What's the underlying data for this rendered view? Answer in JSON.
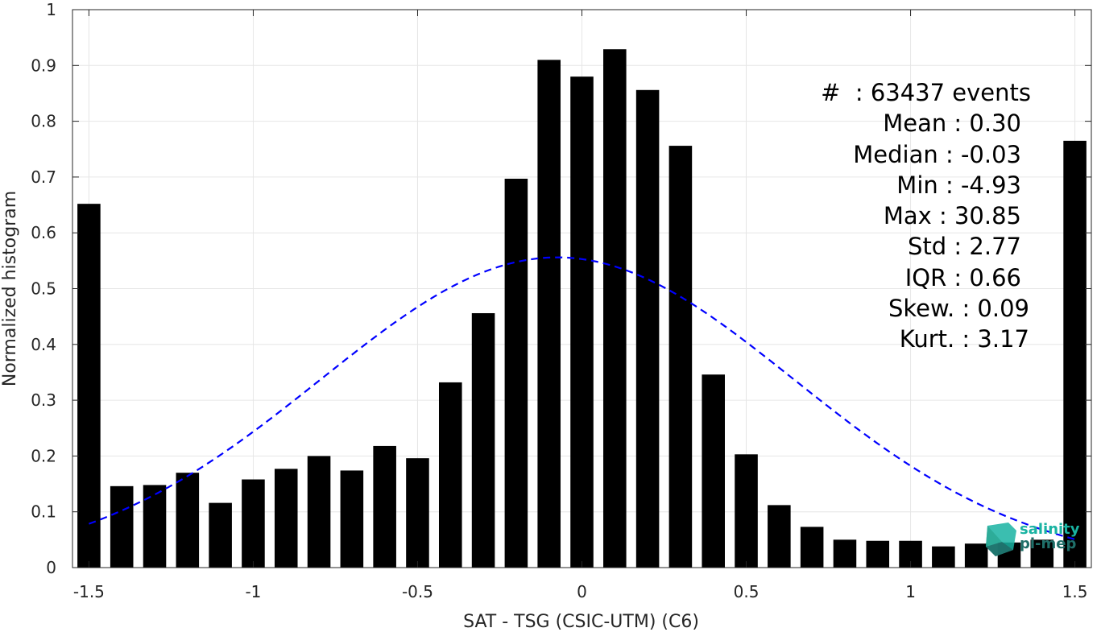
{
  "chart_data": {
    "type": "bar",
    "xlabel": "SAT - TSG (CSIC-UTM) (C6)",
    "ylabel": "Normalized histogram",
    "xlim": [
      -1.55,
      1.55
    ],
    "ylim": [
      0,
      1
    ],
    "grid": true,
    "x_ticks": [
      "-1.5",
      "-1",
      "-0.5",
      "0",
      "0.5",
      "1",
      "1.5"
    ],
    "x_tick_values": [
      -1.5,
      -1,
      -0.5,
      0,
      0.5,
      1,
      1.5
    ],
    "y_ticks": [
      "0",
      "0.1",
      "0.2",
      "0.3",
      "0.4",
      "0.5",
      "0.6",
      "0.7",
      "0.8",
      "0.9",
      "1"
    ],
    "y_tick_values": [
      0,
      0.1,
      0.2,
      0.3,
      0.4,
      0.5,
      0.6,
      0.7,
      0.8,
      0.9,
      1
    ],
    "bar_width": 0.07,
    "bars": {
      "x": [
        -1.5,
        -1.4,
        -1.3,
        -1.2,
        -1.1,
        -1.0,
        -0.9,
        -0.8,
        -0.7,
        -0.6,
        -0.5,
        -0.4,
        -0.3,
        -0.2,
        -0.1,
        0.0,
        0.1,
        0.2,
        0.3,
        0.4,
        0.5,
        0.6,
        0.7,
        0.8,
        0.9,
        1.0,
        1.1,
        1.2,
        1.3,
        1.4,
        1.5
      ],
      "values": [
        0.652,
        0.146,
        0.148,
        0.17,
        0.116,
        0.158,
        0.177,
        0.2,
        0.174,
        0.218,
        0.196,
        0.332,
        0.456,
        0.697,
        0.91,
        0.88,
        0.929,
        0.856,
        0.756,
        0.346,
        0.203,
        0.112,
        0.073,
        0.05,
        0.048,
        0.048,
        0.038,
        0.043,
        0.045,
        0.05,
        0.765
      ]
    },
    "fit_curve": {
      "style": "dashed",
      "color": "#0000ff",
      "mean": -0.075,
      "sigma": 0.72,
      "peak": 0.556,
      "x_range": [
        -1.5,
        1.5
      ]
    },
    "stats": [
      "#  : 63437 events",
      "Mean : 0.30",
      "Median : -0.03",
      "Min : -4.93",
      "Max : 30.85",
      "Std : 2.77",
      "IQR : 0.66",
      "Skew. : 0.09",
      "Kurt. : 3.17"
    ]
  },
  "logo": {
    "line1": "salinity",
    "line2": "pi-mep"
  },
  "colors": {
    "bar": "#000000",
    "grid": "#e6e6e6",
    "axis": "#262626",
    "fit": "#0000ff",
    "logo_light": "#19b3a2",
    "logo_dark": "#1f6f69"
  }
}
